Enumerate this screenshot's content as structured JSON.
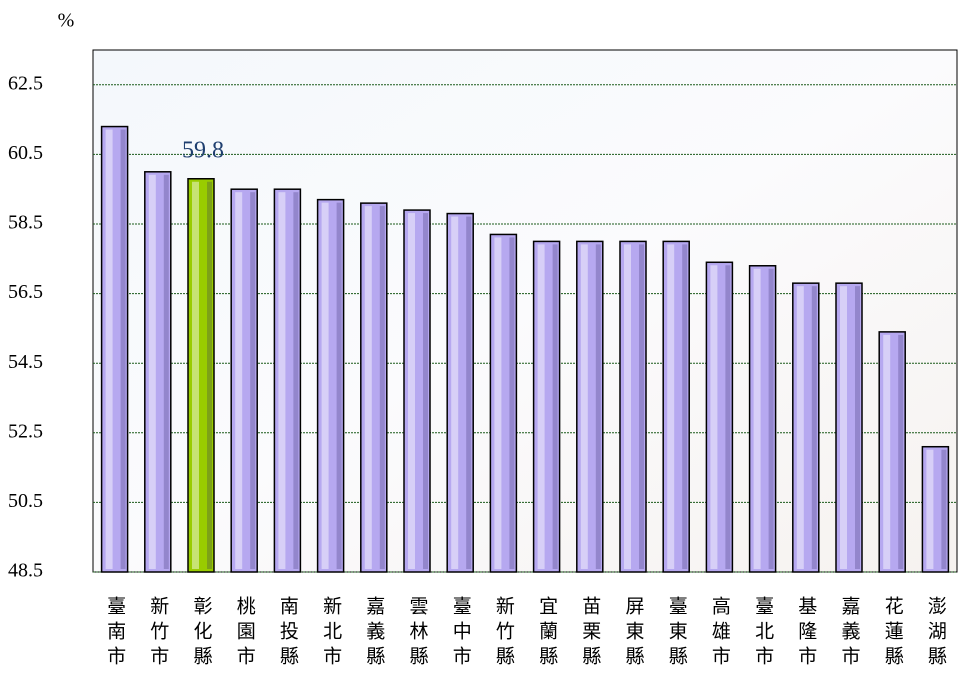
{
  "chart_data": {
    "type": "bar",
    "y_label": "%",
    "categories": [
      "臺南市",
      "新竹市",
      "彰化縣",
      "桃園市",
      "南投縣",
      "新北市",
      "嘉義縣",
      "雲林縣",
      "臺中市",
      "新竹縣",
      "宜蘭縣",
      "苗栗縣",
      "屏東縣",
      "臺東縣",
      "高雄市",
      "臺北市",
      "基隆市",
      "嘉義市",
      "花蓮縣",
      "澎湖縣"
    ],
    "values": [
      61.3,
      60.0,
      59.8,
      59.5,
      59.5,
      59.2,
      59.1,
      58.9,
      58.8,
      58.2,
      58.0,
      58.0,
      58.0,
      58.0,
      57.4,
      57.3,
      56.8,
      56.8,
      55.4,
      52.1
    ],
    "color": "#b6a8f0",
    "highlight": {
      "index": 2,
      "color": "#99cc00"
    },
    "ylim": [
      48.5,
      63.5
    ],
    "yticks": [
      48.5,
      50.5,
      52.5,
      54.5,
      56.5,
      58.5,
      60.5,
      62.5
    ],
    "grid": true
  }
}
